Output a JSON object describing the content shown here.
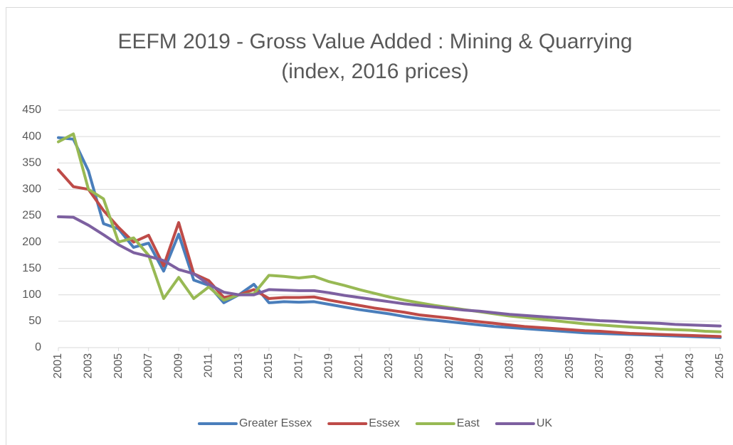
{
  "chart_data": {
    "type": "line",
    "title": "EEFM 2019 - Gross Value Added : Mining & Quarrying",
    "subtitle": "(index, 2016 prices)",
    "x": [
      2001,
      2002,
      2003,
      2004,
      2005,
      2006,
      2007,
      2008,
      2009,
      2010,
      2011,
      2012,
      2013,
      2014,
      2015,
      2016,
      2017,
      2018,
      2019,
      2020,
      2021,
      2022,
      2023,
      2024,
      2025,
      2026,
      2027,
      2028,
      2029,
      2030,
      2031,
      2032,
      2033,
      2034,
      2035,
      2036,
      2037,
      2038,
      2039,
      2040,
      2041,
      2042,
      2043,
      2044,
      2045
    ],
    "xlim": [
      2001,
      2045
    ],
    "xticks": [
      2001,
      2003,
      2005,
      2007,
      2009,
      2011,
      2013,
      2015,
      2017,
      2019,
      2021,
      2023,
      2025,
      2027,
      2029,
      2031,
      2033,
      2035,
      2037,
      2039,
      2041,
      2043,
      2045
    ],
    "ylim": [
      0,
      450
    ],
    "yticks": [
      0,
      50,
      100,
      150,
      200,
      250,
      300,
      350,
      400,
      450
    ],
    "grid": true,
    "legend": "bottom",
    "series": [
      {
        "name": "Greater Essex",
        "color": "#4a7ebb",
        "values": [
          398,
          395,
          335,
          235,
          225,
          190,
          198,
          145,
          215,
          128,
          118,
          85,
          100,
          120,
          85,
          87,
          86,
          87,
          82,
          77,
          72,
          68,
          64,
          59,
          55,
          52,
          49,
          46,
          43,
          40,
          38,
          36,
          34,
          32,
          30,
          28,
          27,
          26,
          25,
          24,
          23,
          22,
          21,
          20,
          19
        ]
      },
      {
        "name": "Essex",
        "color": "#be4b48",
        "values": [
          337,
          305,
          300,
          260,
          228,
          200,
          213,
          155,
          237,
          140,
          127,
          95,
          100,
          110,
          93,
          95,
          95,
          96,
          90,
          85,
          80,
          75,
          71,
          67,
          62,
          59,
          56,
          52,
          49,
          46,
          43,
          40,
          38,
          36,
          34,
          32,
          31,
          29,
          27,
          26,
          25,
          24,
          23,
          22,
          21
        ]
      },
      {
        "name": "East",
        "color": "#98b954",
        "values": [
          390,
          405,
          300,
          282,
          200,
          208,
          175,
          93,
          133,
          93,
          115,
          90,
          100,
          102,
          137,
          135,
          132,
          135,
          125,
          118,
          110,
          103,
          96,
          90,
          85,
          80,
          76,
          72,
          68,
          64,
          60,
          57,
          54,
          51,
          48,
          45,
          43,
          41,
          39,
          37,
          35,
          34,
          33,
          31,
          30
        ]
      },
      {
        "name": "UK",
        "color": "#7d60a0",
        "values": [
          248,
          247,
          232,
          214,
          195,
          180,
          173,
          165,
          148,
          140,
          120,
          105,
          100,
          100,
          110,
          109,
          108,
          108,
          104,
          99,
          95,
          91,
          87,
          83,
          80,
          77,
          74,
          71,
          69,
          66,
          63,
          61,
          59,
          57,
          55,
          53,
          51,
          50,
          48,
          47,
          46,
          44,
          43,
          42,
          41
        ]
      }
    ]
  }
}
